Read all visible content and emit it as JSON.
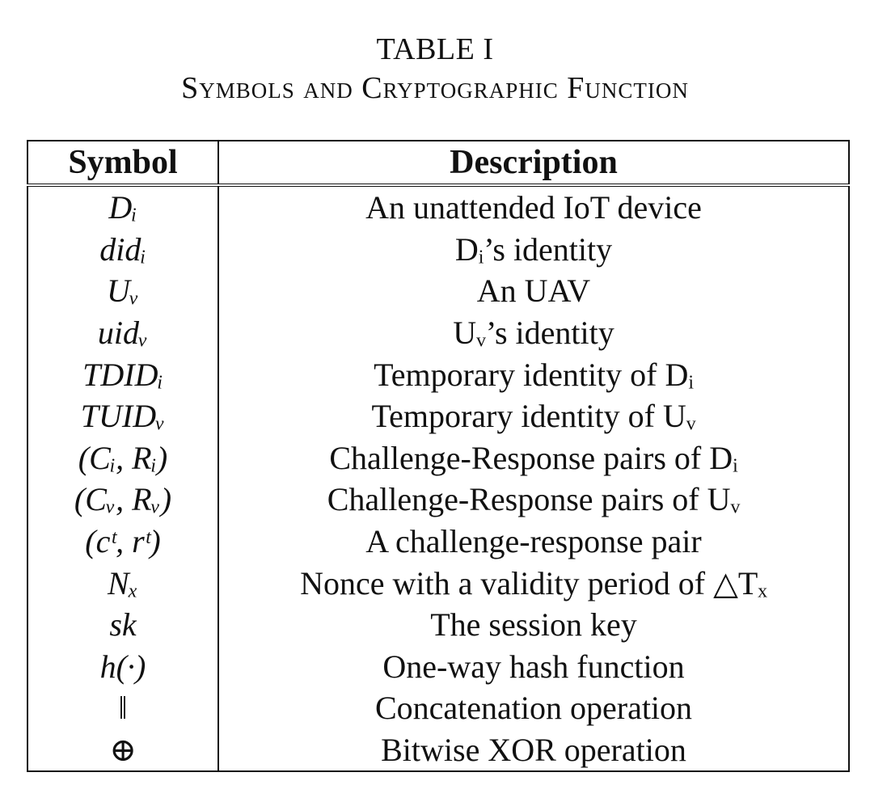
{
  "caption": {
    "label": "TABLE I",
    "title": "Symbols and Cryptographic Function"
  },
  "table": {
    "headers": [
      "Symbol",
      "Description"
    ],
    "rows": [
      {
        "symbol": "Dᵢ",
        "description": "An unattended IoT device"
      },
      {
        "symbol": "didᵢ",
        "description": "Dᵢ’s identity"
      },
      {
        "symbol": "Uᵥ",
        "description": "An UAV"
      },
      {
        "symbol": "uidᵥ",
        "description": "Uᵥ’s identity"
      },
      {
        "symbol": "TDIDᵢ",
        "description": "Temporary identity of Dᵢ"
      },
      {
        "symbol": "TUIDᵥ",
        "description": "Temporary identity of Uᵥ"
      },
      {
        "symbol": "(Cᵢ, Rᵢ)",
        "description": "Challenge-Response pairs of Dᵢ"
      },
      {
        "symbol": "(Cᵥ, Rᵥ)",
        "description": "Challenge-Response pairs of Uᵥ"
      },
      {
        "symbol": "(cᵗ, rᵗ)",
        "description": "A challenge-response pair"
      },
      {
        "symbol": "Nₓ",
        "description": "Nonce with a validity period of △Tₓ"
      },
      {
        "symbol": "sk",
        "description": "The session key"
      },
      {
        "symbol": "h(·)",
        "description": "One-way hash function"
      },
      {
        "symbol": "‖",
        "description": "Concatenation operation"
      },
      {
        "symbol": "⊕",
        "description": "Bitwise XOR operation"
      }
    ]
  }
}
